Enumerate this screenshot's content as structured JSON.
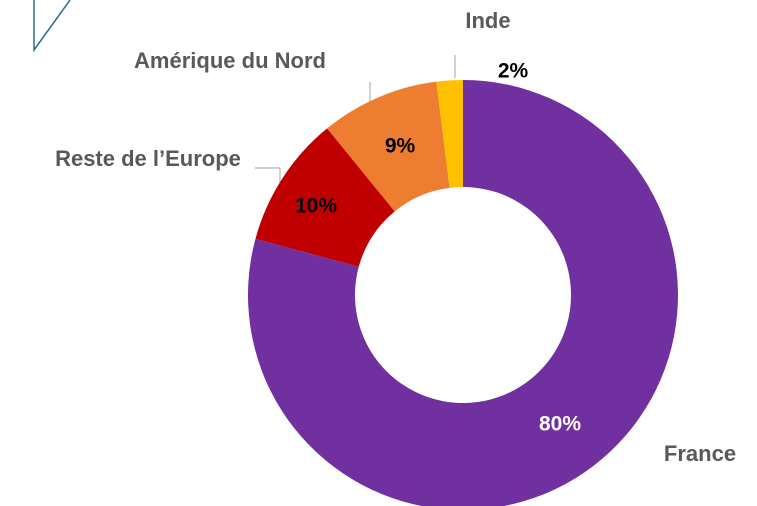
{
  "chart_data": {
    "type": "donut",
    "categories": [
      "France",
      "Reste de l’Europe",
      "Amérique du Nord",
      "Inde"
    ],
    "values": [
      80,
      10,
      9,
      2
    ],
    "value_labels": [
      "80%",
      "10%",
      "9%",
      "2%"
    ],
    "colors": [
      "#7030a0",
      "#c00000",
      "#ed7d31",
      "#ffc000"
    ]
  }
}
